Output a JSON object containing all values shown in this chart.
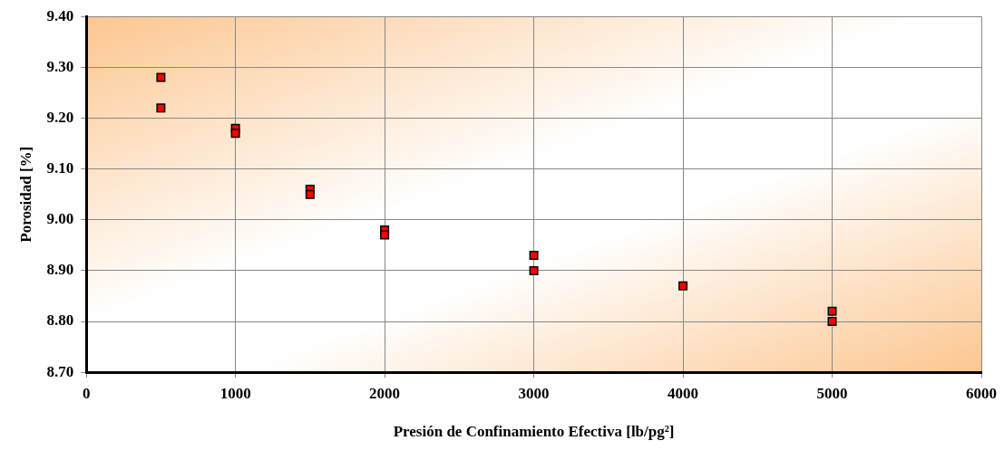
{
  "chart_data": {
    "type": "scatter",
    "xlabel": "Presión de Confinamiento Efectiva [lb/pg²]",
    "ylabel": "Porosidad [%]",
    "x": [
      500,
      500,
      1000,
      1000,
      1500,
      1500,
      2000,
      2000,
      3000,
      3000,
      4000,
      5000,
      5000
    ],
    "series": [
      {
        "color": "#ff0000",
        "values": [
          9.28,
          9.22,
          9.18,
          9.17,
          9.06,
          9.05,
          8.98,
          8.97,
          8.93,
          8.9,
          8.87,
          8.82,
          8.8
        ]
      }
    ],
    "xlim": [
      0,
      6000
    ],
    "xticks": [
      0,
      1000,
      2000,
      3000,
      4000,
      5000,
      6000
    ],
    "ylim": [
      8.7,
      9.4
    ],
    "yticks": [
      {
        "value": 8.7,
        "label": "8.70"
      },
      {
        "value": 8.8,
        "label": "8.80"
      },
      {
        "value": 8.9,
        "label": "8.90"
      },
      {
        "value": 9.0,
        "label": "9.00"
      },
      {
        "value": 9.1,
        "label": "9.10"
      },
      {
        "value": 9.2,
        "label": "9.20"
      },
      {
        "value": 9.3,
        "label": "9.30"
      },
      {
        "value": 9.4,
        "label": "9.40"
      }
    ],
    "grid": true,
    "legend": false,
    "marker": "square"
  }
}
